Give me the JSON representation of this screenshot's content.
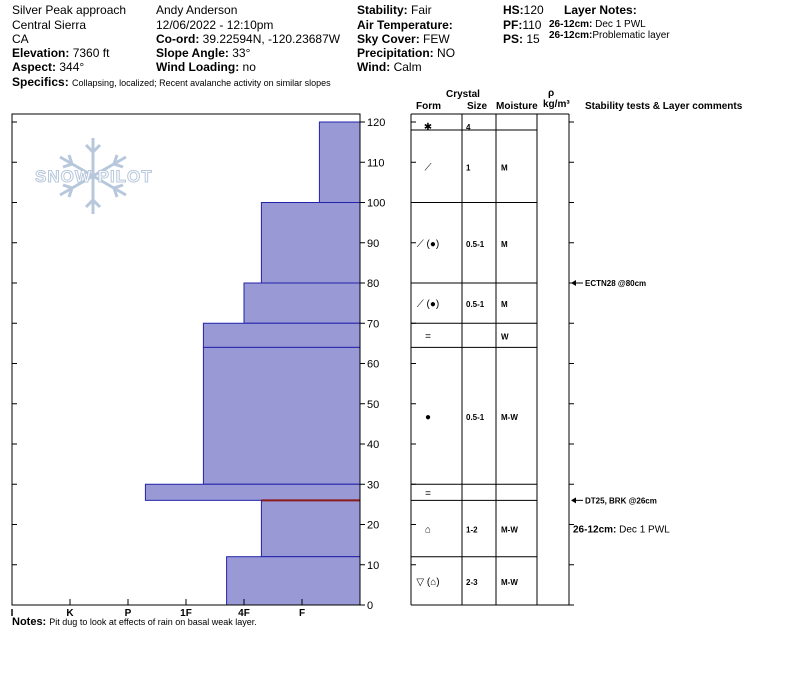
{
  "header": {
    "location": "Silver Peak approach",
    "range": "Central Sierra",
    "state": "CA",
    "elevation_label": "Elevation:",
    "elevation_value": "7360 ft",
    "aspect_label": "Aspect:",
    "aspect_value": "344°",
    "specifics_label": "Specifics:",
    "specifics_value": "Collapsing, localized; Recent avalanche activity on similar slopes",
    "observer": "Andy Anderson",
    "datetime": "12/06/2022 - 12:10pm",
    "coord_label": "Co-ord:",
    "coord_value": "39.22594N, -120.23687W",
    "slope_label": "Slope Angle:",
    "slope_value": "33°",
    "wind_loading_label": "Wind Loading:",
    "wind_loading_value": "no",
    "stability_label": "Stability:",
    "stability_value": "Fair",
    "air_temp_label": "Air Temperature:",
    "sky_label": "Sky Cover:",
    "sky_value": "FEW",
    "precip_label": "Precipitation:",
    "precip_value": "NO",
    "wind_label": "Wind:",
    "wind_value": "Calm",
    "hs_label": "HS:",
    "hs_value": "120",
    "pf_label": "PF:",
    "pf_value": "110",
    "ps_label": "PS:",
    "ps_value": "15",
    "layer_notes_title": "Layer Notes:",
    "layer_notes": [
      {
        "depth": "26-12cm:",
        "text": "Dec 1 PWL"
      },
      {
        "depth": "26-12cm:",
        "text": "Problematic layer"
      }
    ]
  },
  "columns": {
    "crystal": "Crystal",
    "form": "Form",
    "size": "Size",
    "moisture": "Moisture",
    "rho": "ρ",
    "rho_unit": "kg/m³",
    "stability": "Stability tests & Layer comments"
  },
  "logo_text": "SNOW PILOT",
  "notes_label": "Notes:",
  "notes_value": "Pit dug to look at effects of rain on basal weak layer.",
  "colors": {
    "bar_fill": "#9999d6",
    "bar_edge": "#2222aa",
    "weak_line": "#8b1a1a",
    "logo": "#b8c8dc"
  },
  "chart_data": {
    "type": "bar",
    "orientation": "horizontal-step",
    "hardness_ticks": [
      "I",
      "K",
      "P",
      "1F",
      "4F",
      "F"
    ],
    "depth_ticks": [
      "0",
      "10",
      "20",
      "30",
      "40",
      "50",
      "60",
      "70",
      "80",
      "90",
      "100",
      "110",
      "120"
    ],
    "ylim": [
      0,
      120
    ],
    "layers": [
      {
        "top": 120,
        "bottom": 100,
        "hardness": 0.7
      },
      {
        "top": 100,
        "bottom": 80,
        "hardness": 1.7
      },
      {
        "top": 80,
        "bottom": 70,
        "hardness": 2.0
      },
      {
        "top": 70,
        "bottom": 64,
        "hardness": 2.7
      },
      {
        "top": 64,
        "bottom": 30,
        "hardness": 2.7
      },
      {
        "top": 30,
        "bottom": 26,
        "hardness": 3.7
      },
      {
        "top": 26,
        "bottom": 12,
        "hardness": 1.7
      },
      {
        "top": 12,
        "bottom": 0,
        "hardness": 2.3
      }
    ],
    "weak_layer_depth": 26,
    "layer_rows": [
      {
        "top": 120,
        "bottom": 118,
        "form": "✱",
        "size": "4",
        "moisture": ""
      },
      {
        "top": 118,
        "bottom": 100,
        "form": "⟋",
        "size": "1",
        "moisture": "M"
      },
      {
        "top": 100,
        "bottom": 80,
        "form": "⟋ (●)",
        "size": "0.5-1",
        "moisture": "M"
      },
      {
        "top": 80,
        "bottom": 70,
        "form": "⟋ (●)",
        "size": "0.5-1",
        "moisture": "M"
      },
      {
        "top": 70,
        "bottom": 64,
        "form": "=",
        "size": "",
        "moisture": "W"
      },
      {
        "top": 64,
        "bottom": 30,
        "form": "●",
        "size": "0.5-1",
        "moisture": "M-W"
      },
      {
        "top": 30,
        "bottom": 26,
        "form": "=",
        "size": "",
        "moisture": ""
      },
      {
        "top": 26,
        "bottom": 12,
        "form": "⌂",
        "size": "1-2",
        "moisture": "M-W"
      },
      {
        "top": 12,
        "bottom": 0,
        "form": "▽ (⌂)",
        "size": "2-3",
        "moisture": "M-W"
      }
    ],
    "tests": [
      {
        "depth": 80,
        "text": "ECTN28 @80cm"
      },
      {
        "depth": 26,
        "text": "DT25, BRK @26cm"
      }
    ],
    "comments": [
      {
        "depth": 19,
        "label": "26-12cm:",
        "text": "Dec 1 PWL"
      }
    ]
  }
}
